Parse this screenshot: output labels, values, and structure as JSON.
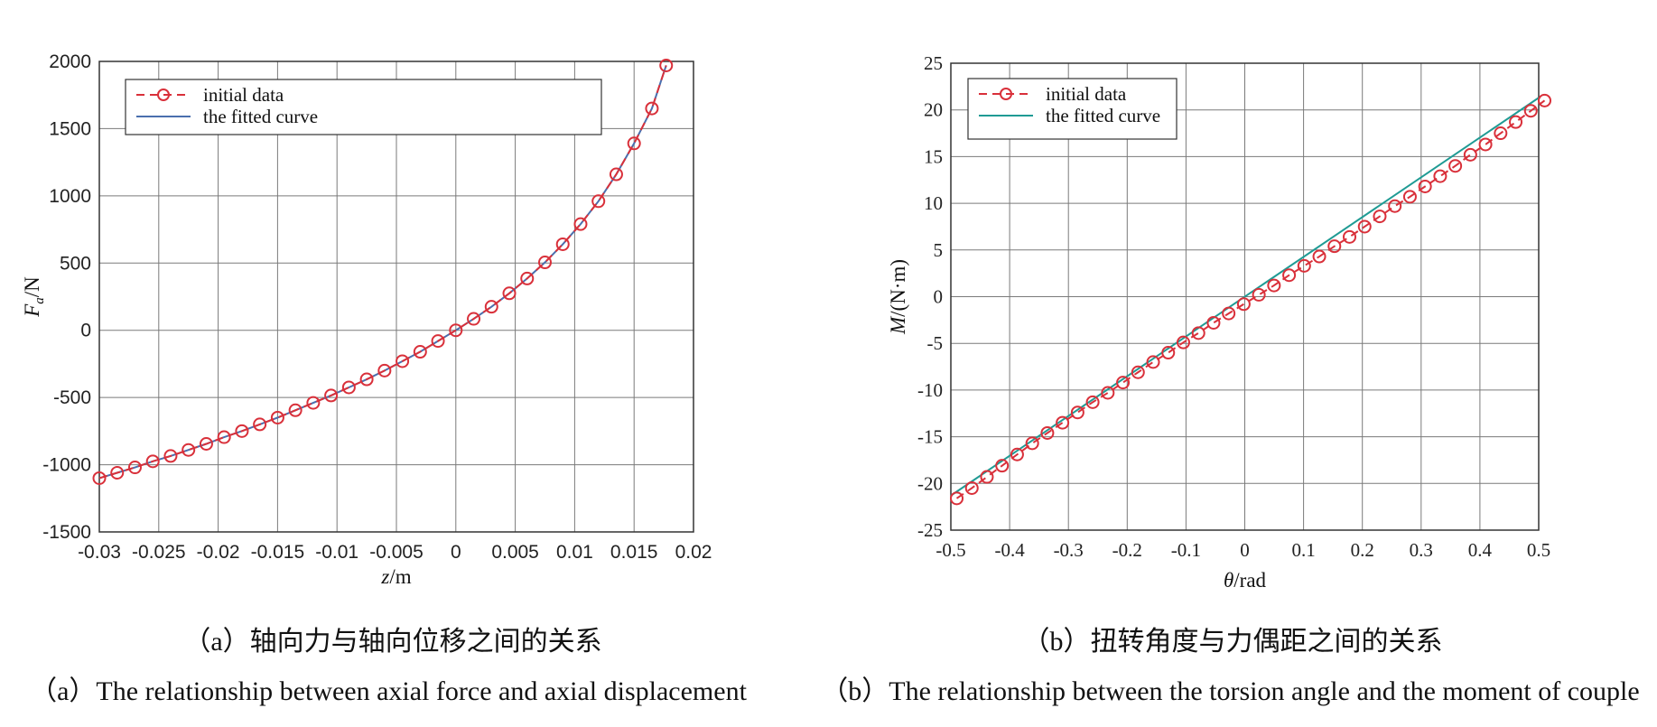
{
  "chart_data": [
    {
      "type": "line",
      "title": "",
      "xlabel_var": "z",
      "xlabel_unit": "/m",
      "ylabel_var": "F",
      "ylabel_sub": "a",
      "ylabel_unit": "/N",
      "xlim": [
        -0.03,
        0.02
      ],
      "ylim": [
        -1500,
        2000
      ],
      "x_ticks": [
        -0.03,
        -0.025,
        -0.02,
        -0.015,
        -0.01,
        -0.005,
        0,
        0.005,
        0.01,
        0.015,
        0.02
      ],
      "x_tick_labels": [
        "-0.03",
        "-0.025",
        "-0.02",
        "-0.015",
        "-0.01",
        "-0.005",
        "0",
        "0.005",
        "0.01",
        "0.015",
        "0.02"
      ],
      "y_ticks": [
        -1500,
        -1000,
        -500,
        0,
        500,
        1000,
        1500,
        2000
      ],
      "y_tick_labels": [
        "-1500",
        "-1000",
        "-500",
        "0",
        "500",
        "1000",
        "1500",
        "2000"
      ],
      "grid": true,
      "legend_position": "top-left",
      "series": [
        {
          "name": "initial data",
          "style": "dashed-circle",
          "color": "#d9303a",
          "x": [
            -0.03,
            -0.0285,
            -0.027,
            -0.0255,
            -0.024,
            -0.0225,
            -0.021,
            -0.0195,
            -0.018,
            -0.0165,
            -0.015,
            -0.0135,
            -0.012,
            -0.0105,
            -0.009,
            -0.0075,
            -0.006,
            -0.0045,
            -0.003,
            -0.0015,
            0.0,
            0.0015,
            0.003,
            0.0045,
            0.006,
            0.0075,
            0.009,
            0.0105,
            0.012,
            0.0135,
            0.015,
            0.0165,
            0.0177
          ],
          "y": [
            -1100,
            -1060,
            -1020,
            -975,
            -935,
            -890,
            -845,
            -795,
            -750,
            -700,
            -650,
            -595,
            -540,
            -485,
            -425,
            -365,
            -300,
            -230,
            -160,
            -80,
            0,
            85,
            175,
            275,
            385,
            505,
            640,
            790,
            960,
            1160,
            1390,
            1650,
            1970
          ]
        },
        {
          "name": "the fitted curve",
          "style": "solid",
          "color": "#4a6fae",
          "x": [
            -0.03,
            -0.0285,
            -0.027,
            -0.0255,
            -0.024,
            -0.0225,
            -0.021,
            -0.0195,
            -0.018,
            -0.0165,
            -0.015,
            -0.0135,
            -0.012,
            -0.0105,
            -0.009,
            -0.0075,
            -0.006,
            -0.0045,
            -0.003,
            -0.0015,
            0.0,
            0.0015,
            0.003,
            0.0045,
            0.006,
            0.0075,
            0.009,
            0.0105,
            0.012,
            0.0135,
            0.015,
            0.0165,
            0.0177
          ],
          "y": [
            -1100,
            -1060,
            -1020,
            -975,
            -935,
            -890,
            -845,
            -795,
            -750,
            -700,
            -650,
            -595,
            -540,
            -485,
            -425,
            -365,
            -300,
            -230,
            -160,
            -80,
            0,
            85,
            175,
            275,
            385,
            505,
            640,
            790,
            960,
            1160,
            1390,
            1650,
            1970
          ]
        }
      ]
    },
    {
      "type": "line",
      "title": "",
      "xlabel_var": "θ",
      "xlabel_unit": "/rad",
      "ylabel_var": "M",
      "ylabel_sub": "",
      "ylabel_unit": "/(N·m)",
      "xlim": [
        -0.5,
        0.5
      ],
      "ylim": [
        -25,
        25
      ],
      "x_ticks": [
        -0.5,
        -0.4,
        -0.3,
        -0.2,
        -0.1,
        0,
        0.1,
        0.2,
        0.3,
        0.4,
        0.5
      ],
      "x_tick_labels": [
        "-0.5",
        "-0.4",
        "-0.3",
        "-0.2",
        "-0.1",
        "0",
        "0.1",
        "0.2",
        "0.3",
        "0.4",
        "0.5"
      ],
      "y_ticks": [
        -25,
        -20,
        -15,
        -10,
        -5,
        0,
        5,
        10,
        15,
        20,
        25
      ],
      "y_tick_labels": [
        "-25",
        "-20",
        "-15",
        "-10",
        "-5",
        "0",
        "5",
        "10",
        "15",
        "20",
        "25"
      ],
      "grid": true,
      "legend_position": "top-left",
      "series": [
        {
          "name": "initial data",
          "style": "dashed-circle",
          "color": "#d9303a",
          "x": [
            -0.49,
            -0.4643,
            -0.4386,
            -0.4129,
            -0.3872,
            -0.3615,
            -0.3358,
            -0.3101,
            -0.2844,
            -0.2587,
            -0.233,
            -0.2073,
            -0.1816,
            -0.1559,
            -0.1302,
            -0.1045,
            -0.0788,
            -0.0531,
            -0.0274,
            -0.0017,
            0.024,
            0.0497,
            0.0754,
            0.1011,
            0.1268,
            0.1525,
            0.1782,
            0.2039,
            0.2296,
            0.2553,
            0.281,
            0.3067,
            0.3324,
            0.3581,
            0.3838,
            0.4095,
            0.4352,
            0.4609,
            0.4866,
            0.51
          ],
          "y": [
            -21.6,
            -20.5,
            -19.3,
            -18.1,
            -16.9,
            -15.7,
            -14.6,
            -13.5,
            -12.4,
            -11.3,
            -10.3,
            -9.2,
            -8.1,
            -7.0,
            -6.0,
            -4.9,
            -3.9,
            -2.8,
            -1.8,
            -0.8,
            0.2,
            1.2,
            2.3,
            3.3,
            4.3,
            5.4,
            6.4,
            7.5,
            8.6,
            9.7,
            10.7,
            11.8,
            12.9,
            14.0,
            15.2,
            16.3,
            17.5,
            18.7,
            19.9,
            21.0
          ]
        },
        {
          "name": "the fitted curve",
          "style": "solid",
          "color": "#1f9b94",
          "x": [
            -0.5,
            0.5
          ],
          "y": [
            -21.3,
            21.3
          ]
        }
      ]
    }
  ],
  "captions": {
    "a_cn": "（a）轴向力与轴向位移之间的关系",
    "a_en": "（a）The relationship between axial force and axial displacement",
    "b_cn": "（b）扭转角度与力偶距之间的关系",
    "b_en": "（b）The relationship between the torsion angle and the moment of couple"
  }
}
